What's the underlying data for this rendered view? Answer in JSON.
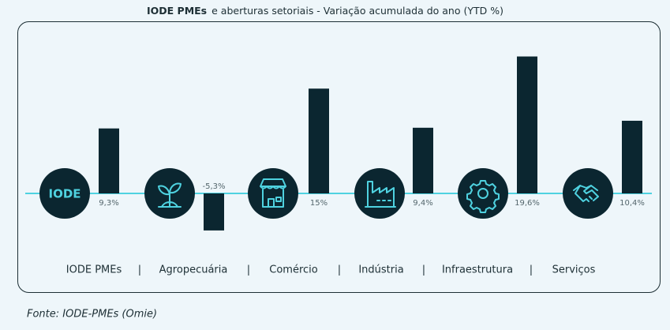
{
  "chart_data": {
    "type": "bar",
    "title_parts": [
      "IODE PMEs",
      "e aberturas setoriais - Variação acumulada do ano (YTD %)"
    ],
    "categories": [
      "IODE PMEs",
      "Agropecuária",
      "Comércio",
      "Indústria",
      "Infraestrutura",
      "Serviços"
    ],
    "values": [
      9.3,
      -5.3,
      15,
      9.4,
      19.6,
      10.4
    ],
    "value_labels": [
      "9,3%",
      "-5,3%",
      "15%",
      "9,4%",
      "19,6%",
      "10,4%"
    ],
    "color": "#0b2630",
    "badge": "IODE",
    "source": "Fonte: IODE-PMEs (Omie)"
  }
}
